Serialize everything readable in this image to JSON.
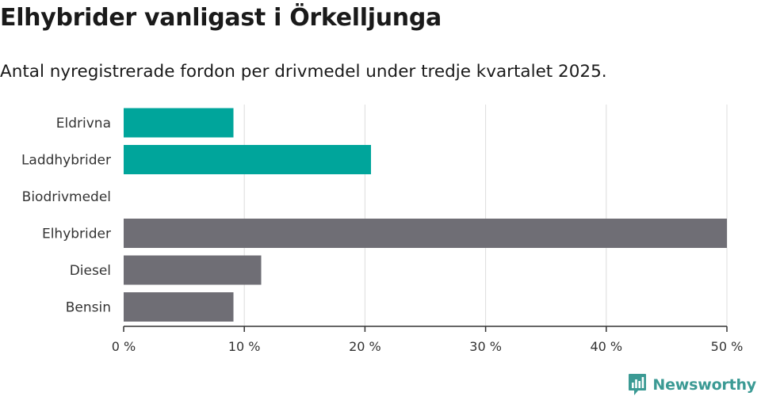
{
  "header": {
    "title": "Elhybrider vanligast i Örkelljunga",
    "subtitle": "Antal nyregistrerade fordon per drivmedel under tredje kvartalet 2025."
  },
  "brand": {
    "name": "Newsworthy",
    "icon": "newsworthy-logo-icon",
    "color": "#3b9a94"
  },
  "chart_data": {
    "type": "bar",
    "orientation": "horizontal",
    "title": "Elhybrider vanligast i Örkelljunga",
    "subtitle": "Antal nyregistrerade fordon per drivmedel under tredje kvartalet 2025.",
    "xlabel": "",
    "ylabel": "",
    "xlim": [
      0,
      50
    ],
    "ticks": [
      0,
      10,
      20,
      30,
      40,
      50
    ],
    "tick_labels": [
      "0 %",
      "10 %",
      "20 %",
      "30 %",
      "40 %",
      "50 %"
    ],
    "grid": true,
    "categories": [
      "Eldrivna",
      "Laddhybrider",
      "Biodrivmedel",
      "Elhybrider",
      "Diesel",
      "Bensin"
    ],
    "values": [
      9.1,
      20.5,
      0,
      50.0,
      11.4,
      9.1
    ],
    "colors": [
      "#00a59b",
      "#00a59b",
      "#00a59b",
      "#6f6e75",
      "#6f6e75",
      "#6f6e75"
    ]
  }
}
